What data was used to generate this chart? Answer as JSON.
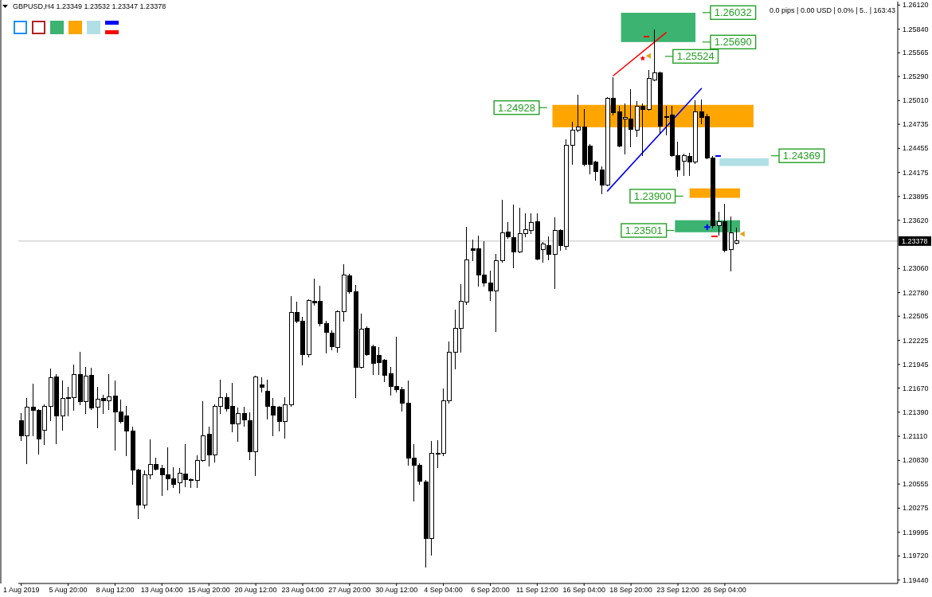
{
  "chart_data": {
    "type": "candlestick",
    "title": "GBPUSD,H4 1.23349 1.23532 1.23347 1.23378",
    "categories": [
      "1 Aug 2019",
      null,
      null,
      null,
      null,
      null,
      null,
      null,
      "5 Aug 20:00",
      null,
      null,
      null,
      null,
      null,
      null,
      null,
      "8 Aug 12:00",
      null,
      null,
      null,
      null,
      null,
      null,
      null,
      "13 Aug 04:00",
      null,
      null,
      null,
      null,
      null,
      null,
      null,
      "15 Aug 20:00",
      null,
      null,
      null,
      null,
      null,
      null,
      null,
      "20 Aug 12:00",
      null,
      null,
      null,
      null,
      null,
      null,
      null,
      "23 Aug 04:00",
      null,
      null,
      null,
      null,
      null,
      null,
      null,
      "27 Aug 20:00",
      null,
      null,
      null,
      null,
      null,
      null,
      null,
      "30 Aug 12:00",
      null,
      null,
      null,
      null,
      null,
      null,
      null,
      "4 Sep 04:00",
      null,
      null,
      null,
      null,
      null,
      null,
      null,
      "6 Sep 20:00",
      null,
      null,
      null,
      null,
      null,
      null,
      null,
      "11 Sep 12:00",
      null,
      null,
      null,
      null,
      null,
      null,
      null,
      "16 Sep 04:00",
      null,
      null,
      null,
      null,
      null,
      null,
      null,
      "18 Sep 20:00",
      null,
      null,
      null,
      null,
      null,
      null,
      null,
      "23 Sep 12:00",
      null,
      null,
      null,
      null,
      null,
      null,
      null,
      "26 Sep 04:00",
      null,
      null,
      null,
      null,
      null,
      null,
      null,
      null,
      null,
      null,
      null,
      null,
      null,
      null,
      null,
      null,
      null,
      null,
      null,
      null,
      null,
      null,
      null,
      null,
      null,
      null,
      null,
      null,
      null
    ],
    "ohlc": [
      [
        1.2129,
        1.2137,
        1.2106,
        1.2112
      ],
      [
        1.2112,
        1.2155,
        1.2079,
        1.2145
      ],
      [
        1.2145,
        1.2172,
        1.2112,
        1.2141
      ],
      [
        1.2141,
        1.2142,
        1.209,
        1.2108
      ],
      [
        1.2118,
        1.2148,
        1.2101,
        1.2146
      ],
      [
        1.2146,
        1.2189,
        1.2129,
        1.2179
      ],
      [
        1.218,
        1.2183,
        1.2102,
        1.2135
      ],
      [
        1.2135,
        1.2175,
        1.2118,
        1.2155
      ],
      [
        1.2155,
        1.2168,
        1.2135,
        1.2156
      ],
      [
        1.2156,
        1.2194,
        1.2141,
        1.2183
      ],
      [
        1.2183,
        1.2209,
        1.2148,
        1.2151
      ],
      [
        1.2151,
        1.2191,
        1.2137,
        1.2181
      ],
      [
        1.2182,
        1.219,
        1.2142,
        1.2144
      ],
      [
        1.2145,
        1.2168,
        1.2121,
        1.2154
      ],
      [
        1.2155,
        1.2159,
        1.2137,
        1.2152
      ],
      [
        1.2152,
        1.2183,
        1.2142,
        1.2157
      ],
      [
        1.2158,
        1.2175,
        1.2095,
        1.2139
      ],
      [
        1.2139,
        1.2153,
        1.2126,
        1.2128
      ],
      [
        1.2135,
        1.2146,
        1.2088,
        1.2117
      ],
      [
        1.2117,
        1.2122,
        1.2055,
        1.2072
      ],
      [
        1.2072,
        1.2073,
        1.2015,
        1.2031
      ],
      [
        1.2031,
        1.2071,
        1.2027,
        1.2066
      ],
      [
        1.2066,
        1.2107,
        1.2062,
        1.2078
      ],
      [
        1.2078,
        1.2086,
        1.2072,
        1.2073
      ],
      [
        1.2074,
        1.2077,
        1.2042,
        1.2066
      ],
      [
        1.2066,
        1.2098,
        1.2049,
        1.2062
      ],
      [
        1.2062,
        1.2075,
        1.2051,
        1.2055
      ],
      [
        1.2057,
        1.2074,
        1.2045,
        1.2068
      ],
      [
        1.2067,
        1.2101,
        1.2052,
        1.2061
      ],
      [
        1.2061,
        1.2062,
        1.2051,
        1.206
      ],
      [
        1.206,
        1.2088,
        1.2051,
        1.2083
      ],
      [
        1.2083,
        1.2151,
        1.2082,
        1.2112
      ],
      [
        1.2113,
        1.2122,
        1.2076,
        1.2089
      ],
      [
        1.2089,
        1.2148,
        1.2081,
        1.2146
      ],
      [
        1.2146,
        1.2176,
        1.2137,
        1.2156
      ],
      [
        1.2156,
        1.2161,
        1.214,
        1.2143
      ],
      [
        1.2146,
        1.2173,
        1.2116,
        1.2125
      ],
      [
        1.2125,
        1.2144,
        1.2105,
        1.2137
      ],
      [
        1.2137,
        1.2145,
        1.2123,
        1.213
      ],
      [
        1.2129,
        1.2138,
        1.2084,
        1.2093
      ],
      [
        1.2093,
        1.2181,
        1.2065,
        1.218
      ],
      [
        1.2171,
        1.2179,
        1.2162,
        1.2168
      ],
      [
        1.2163,
        1.2176,
        1.2131,
        1.2146
      ],
      [
        1.2146,
        1.2155,
        1.2112,
        1.2136
      ],
      [
        1.2145,
        1.2146,
        1.2117,
        1.2128
      ],
      [
        1.2128,
        1.2156,
        1.2109,
        1.2148
      ],
      [
        1.2148,
        1.2273,
        1.2146,
        1.2255
      ],
      [
        1.2255,
        1.2267,
        1.2243,
        1.2245
      ],
      [
        1.2245,
        1.2249,
        1.2194,
        1.2206
      ],
      [
        1.2206,
        1.227,
        1.2203,
        1.2269
      ],
      [
        1.2268,
        1.2294,
        1.2263,
        1.2266
      ],
      [
        1.2268,
        1.2285,
        1.2239,
        1.2242
      ],
      [
        1.2242,
        1.2245,
        1.2208,
        1.2232
      ],
      [
        1.2231,
        1.2234,
        1.2211,
        1.2215
      ],
      [
        1.2214,
        1.2257,
        1.2209,
        1.2256
      ],
      [
        1.2256,
        1.231,
        1.2245,
        1.2298
      ],
      [
        1.2297,
        1.2299,
        1.2277,
        1.2279
      ],
      [
        1.2279,
        1.2286,
        1.2156,
        1.2191
      ],
      [
        1.2191,
        1.2253,
        1.219,
        1.2235
      ],
      [
        1.2236,
        1.2238,
        1.2205,
        1.2206
      ],
      [
        1.2215,
        1.2217,
        1.2183,
        1.2196
      ],
      [
        1.2205,
        1.2214,
        1.2183,
        1.2197
      ],
      [
        1.2199,
        1.22,
        1.2174,
        1.2182
      ],
      [
        1.2184,
        1.2191,
        1.2159,
        1.2169
      ],
      [
        1.2169,
        1.2226,
        1.2162,
        1.2165
      ],
      [
        1.2165,
        1.2168,
        1.214,
        1.2149
      ],
      [
        1.2149,
        1.2175,
        1.2077,
        1.2086
      ],
      [
        1.2086,
        1.2101,
        1.2036,
        1.2077
      ],
      [
        1.2077,
        1.2079,
        1.2055,
        1.2059
      ],
      [
        1.2058,
        1.206,
        1.1959,
        1.1992
      ],
      [
        1.1992,
        1.2105,
        1.1973,
        1.2091
      ],
      [
        1.2091,
        1.2106,
        1.2075,
        1.209
      ],
      [
        1.2091,
        1.2166,
        1.2088,
        1.2152
      ],
      [
        1.2152,
        1.2221,
        1.2149,
        1.2209
      ],
      [
        1.2209,
        1.2258,
        1.2189,
        1.2236
      ],
      [
        1.2236,
        1.2287,
        1.2209,
        1.2268
      ],
      [
        1.2267,
        1.2354,
        1.2264,
        1.2316
      ],
      [
        1.2329,
        1.2339,
        1.2315,
        1.2327
      ],
      [
        1.2329,
        1.2344,
        1.2285,
        1.2298
      ],
      [
        1.2298,
        1.2337,
        1.2285,
        1.2289
      ],
      [
        1.2289,
        1.2303,
        1.2269,
        1.228
      ],
      [
        1.228,
        1.2322,
        1.2233,
        1.2315
      ],
      [
        1.2315,
        1.2385,
        1.2313,
        1.2347
      ],
      [
        1.2348,
        1.2359,
        1.2341,
        1.2343
      ],
      [
        1.2342,
        1.238,
        1.2307,
        1.2325
      ],
      [
        1.2325,
        1.2376,
        1.2324,
        1.2346
      ],
      [
        1.2346,
        1.237,
        1.2343,
        1.2351
      ],
      [
        1.235,
        1.237,
        1.2346,
        1.2359
      ],
      [
        1.236,
        1.237,
        1.2316,
        1.2317
      ],
      [
        1.2328,
        1.2336,
        1.2313,
        1.2334
      ],
      [
        1.2333,
        1.2343,
        1.2316,
        1.2322
      ],
      [
        1.2322,
        1.2365,
        1.2283,
        1.235
      ],
      [
        1.235,
        1.2351,
        1.2327,
        1.2333
      ],
      [
        1.2332,
        1.2456,
        1.2328,
        1.2449
      ],
      [
        1.2449,
        1.2476,
        1.2427,
        1.2467
      ],
      [
        1.2467,
        1.2507,
        1.2465,
        1.247
      ],
      [
        1.247,
        1.2491,
        1.2425,
        1.2427
      ],
      [
        1.2448,
        1.245,
        1.2416,
        1.2427
      ],
      [
        1.243,
        1.2431,
        1.2408,
        1.2419
      ],
      [
        1.242,
        1.2424,
        1.2393,
        1.2403
      ],
      [
        1.2403,
        1.2505,
        1.2402,
        1.2504
      ],
      [
        1.2504,
        1.2528,
        1.2484,
        1.2487
      ],
      [
        1.2488,
        1.2494,
        1.2447,
        1.2448
      ],
      [
        1.248,
        1.2497,
        1.2439,
        1.2481
      ],
      [
        1.248,
        1.2514,
        1.2447,
        1.2468
      ],
      [
        1.2467,
        1.25,
        1.2459,
        1.2494
      ],
      [
        1.2494,
        1.2497,
        1.2437,
        1.2491
      ],
      [
        1.2491,
        1.2536,
        1.249,
        1.2527
      ],
      [
        1.2525,
        1.2583,
        1.2524,
        1.2533
      ],
      [
        1.2533,
        1.2534,
        1.2462,
        1.2471
      ],
      [
        1.2482,
        1.2494,
        1.2461,
        1.2481
      ],
      [
        1.2484,
        1.2494,
        1.2436,
        1.2437
      ],
      [
        1.2437,
        1.2453,
        1.2413,
        1.242
      ],
      [
        1.2431,
        1.2439,
        1.2414,
        1.2437
      ],
      [
        1.2436,
        1.244,
        1.2414,
        1.243
      ],
      [
        1.243,
        1.2501,
        1.2428,
        1.2488
      ],
      [
        1.2488,
        1.2502,
        1.2474,
        1.2481
      ],
      [
        1.2482,
        1.2485,
        1.2433,
        1.2434
      ],
      [
        1.2434,
        1.2436,
        1.2353,
        1.2356
      ],
      [
        1.2356,
        1.2371,
        1.2345,
        1.236
      ],
      [
        1.236,
        1.2381,
        1.2325,
        1.2327
      ],
      [
        1.2328,
        1.2366,
        1.2303,
        1.2347
      ],
      [
        1.23349,
        1.23532,
        1.23347,
        1.23378
      ],
      null,
      null,
      null,
      null,
      null,
      null,
      null,
      null,
      null,
      null,
      null,
      null,
      null,
      null,
      null,
      null,
      null,
      null,
      null,
      null,
      null,
      null,
      null,
      null,
      null,
      null,
      null
    ],
    "series": [
      {
        "type": "line",
        "color": "#ff0000",
        "values": [
          null,
          null,
          null,
          null,
          null,
          null,
          null,
          null,
          null,
          null,
          null,
          null,
          null,
          null,
          null,
          null,
          null,
          null,
          null,
          null,
          null,
          null,
          null,
          null,
          null,
          null,
          null,
          null,
          null,
          null,
          null,
          null,
          null,
          null,
          null,
          null,
          null,
          null,
          null,
          null,
          null,
          null,
          null,
          null,
          null,
          null,
          null,
          null,
          null,
          null,
          null,
          null,
          null,
          null,
          null,
          null,
          null,
          null,
          null,
          null,
          null,
          null,
          null,
          null,
          null,
          null,
          null,
          null,
          null,
          null,
          null,
          null,
          null,
          null,
          null,
          null,
          null,
          null,
          null,
          null,
          null,
          null,
          null,
          null,
          null,
          null,
          null,
          null,
          null,
          null,
          null,
          null,
          null,
          null,
          null,
          null,
          null,
          null,
          null,
          null,
          null,
          1.253,
          null,
          null,
          null,
          null,
          null,
          null,
          null,
          null,
          1.258,
          null,
          null,
          null,
          null,
          null,
          null,
          null,
          null,
          null,
          null,
          null,
          null,
          null,
          null,
          null,
          null,
          null,
          null,
          null,
          null,
          null,
          null,
          null,
          null,
          null,
          null,
          null,
          null,
          null,
          null,
          null,
          null,
          null,
          null,
          null,
          null,
          null,
          null,
          null
        ]
      },
      {
        "type": "line",
        "color": "#0000ff",
        "values": [
          null,
          null,
          null,
          null,
          null,
          null,
          null,
          null,
          null,
          null,
          null,
          null,
          null,
          null,
          null,
          null,
          null,
          null,
          null,
          null,
          null,
          null,
          null,
          null,
          null,
          null,
          null,
          null,
          null,
          null,
          null,
          null,
          null,
          null,
          null,
          null,
          null,
          null,
          null,
          null,
          null,
          null,
          null,
          null,
          null,
          null,
          null,
          null,
          null,
          null,
          null,
          null,
          null,
          null,
          null,
          null,
          null,
          null,
          null,
          null,
          null,
          null,
          null,
          null,
          null,
          null,
          null,
          null,
          null,
          null,
          null,
          null,
          null,
          null,
          null,
          null,
          null,
          null,
          null,
          null,
          null,
          null,
          null,
          null,
          null,
          null,
          null,
          null,
          null,
          null,
          null,
          null,
          null,
          null,
          null,
          null,
          null,
          null,
          null,
          null,
          1.2396,
          null,
          null,
          null,
          null,
          null,
          null,
          null,
          null,
          null,
          null,
          null,
          null,
          null,
          null,
          null,
          1.2515,
          null,
          null,
          null,
          null,
          null,
          null,
          null,
          null,
          null,
          null,
          null,
          null,
          null,
          null,
          null,
          null,
          null,
          null,
          null,
          null,
          null,
          null,
          null,
          null,
          null,
          null,
          null,
          null,
          null,
          null,
          null,
          null,
          null
        ]
      },
      {
        "type": "scatter",
        "color": "#ff0000",
        "marker": "star",
        "values": [
          null,
          null,
          null,
          null,
          null,
          null,
          null,
          null,
          null,
          null,
          null,
          null,
          null,
          null,
          null,
          null,
          null,
          null,
          null,
          null,
          null,
          null,
          null,
          null,
          null,
          null,
          null,
          null,
          null,
          null,
          null,
          null,
          null,
          null,
          null,
          null,
          null,
          null,
          null,
          null,
          null,
          null,
          null,
          null,
          null,
          null,
          null,
          null,
          null,
          null,
          null,
          null,
          null,
          null,
          null,
          null,
          null,
          null,
          null,
          null,
          null,
          null,
          null,
          null,
          null,
          null,
          null,
          null,
          null,
          null,
          null,
          null,
          null,
          null,
          null,
          null,
          null,
          null,
          null,
          null,
          null,
          null,
          null,
          null,
          null,
          null,
          null,
          null,
          null,
          null,
          null,
          null,
          null,
          null,
          null,
          null,
          null,
          null,
          null,
          null,
          null,
          null,
          null,
          null,
          null,
          null,
          1.255,
          null,
          null,
          null,
          null,
          null,
          null,
          null,
          null,
          null,
          null,
          null,
          null,
          null,
          null,
          null,
          null,
          null,
          null,
          null,
          null,
          null,
          null,
          null,
          null,
          null,
          null,
          null,
          null,
          null,
          null,
          null,
          null,
          null,
          null,
          null,
          null,
          null,
          null,
          null,
          null,
          null,
          null,
          null
        ]
      },
      {
        "type": "scatter",
        "color": "#e8a317",
        "marker": "triangle",
        "values": [
          null,
          null,
          null,
          null,
          null,
          null,
          null,
          null,
          null,
          null,
          null,
          null,
          null,
          null,
          null,
          null,
          null,
          null,
          null,
          null,
          null,
          null,
          null,
          null,
          null,
          null,
          null,
          null,
          null,
          null,
          null,
          null,
          null,
          null,
          null,
          null,
          null,
          null,
          null,
          null,
          null,
          null,
          null,
          null,
          null,
          null,
          null,
          null,
          null,
          null,
          null,
          null,
          null,
          null,
          null,
          null,
          null,
          null,
          null,
          null,
          null,
          null,
          null,
          null,
          null,
          null,
          null,
          null,
          null,
          null,
          null,
          null,
          null,
          null,
          null,
          null,
          null,
          null,
          null,
          null,
          null,
          null,
          null,
          null,
          null,
          null,
          null,
          null,
          null,
          null,
          null,
          null,
          null,
          null,
          null,
          null,
          null,
          null,
          null,
          null,
          null,
          null,
          null,
          null,
          null,
          null,
          null,
          1.2553,
          null,
          null,
          null,
          null,
          null,
          null,
          null,
          null,
          null,
          null,
          null,
          null,
          null,
          null,
          null,
          1.2346,
          null,
          null,
          null,
          null,
          null,
          null,
          null,
          null,
          null,
          null,
          null,
          null,
          null,
          null,
          null,
          null,
          null,
          null,
          null,
          null,
          null,
          null,
          null,
          null,
          null,
          null
        ]
      },
      {
        "type": "scatter",
        "color": "#0000ff",
        "marker": "cross",
        "values": [
          null,
          null,
          null,
          null,
          null,
          null,
          null,
          null,
          null,
          null,
          null,
          null,
          null,
          null,
          null,
          null,
          null,
          null,
          null,
          null,
          null,
          null,
          null,
          null,
          null,
          null,
          null,
          null,
          null,
          null,
          null,
          null,
          null,
          null,
          null,
          null,
          null,
          null,
          null,
          null,
          null,
          null,
          null,
          null,
          null,
          null,
          null,
          null,
          null,
          null,
          null,
          null,
          null,
          null,
          null,
          null,
          null,
          null,
          null,
          null,
          null,
          null,
          null,
          null,
          null,
          null,
          null,
          null,
          null,
          null,
          null,
          null,
          null,
          null,
          null,
          null,
          null,
          null,
          null,
          null,
          null,
          null,
          null,
          null,
          null,
          null,
          null,
          null,
          null,
          null,
          null,
          null,
          null,
          null,
          null,
          null,
          null,
          null,
          null,
          null,
          null,
          null,
          null,
          null,
          null,
          null,
          null,
          null,
          null,
          null,
          null,
          null,
          null,
          null,
          null,
          null,
          null,
          1.2354,
          null,
          null,
          null,
          null,
          null,
          null,
          null,
          null,
          null,
          null,
          null,
          null,
          null,
          null,
          null,
          null,
          null,
          null,
          null,
          null,
          null,
          null,
          null,
          null,
          null,
          null,
          null,
          null,
          null,
          null,
          null,
          null
        ]
      }
    ],
    "bands": [
      {
        "axis": "y",
        "from": 1.2569,
        "to": 1.2603,
        "color": "#3cb371"
      },
      {
        "axis": "y",
        "from": 1.247,
        "to": 1.2496,
        "color": "#ffa500"
      },
      {
        "axis": "y",
        "from": 1.2425,
        "to": 1.2434,
        "color": "#b0e0e6"
      },
      {
        "axis": "y",
        "from": 1.2388,
        "to": 1.2399,
        "color": "#ffa500"
      },
      {
        "axis": "y",
        "from": 1.2348,
        "to": 1.2362,
        "color": "#3cb371"
      }
    ],
    "ylim": [
      1.194,
      1.2616
    ],
    "yticks": [
      {
        "value": 1.2612,
        "label": "1.26120"
      },
      {
        "value": 1.2584,
        "label": "1.25840"
      },
      1.25565,
      {
        "value": 1.2529,
        "label": "1.25290"
      },
      {
        "value": 1.2501,
        "label": "1.25010"
      },
      1.24735,
      1.24455,
      1.24175,
      1.23895,
      {
        "value": 1.2362,
        "label": "1.23620"
      },
      {
        "value": 1.2306,
        "label": "1.23060"
      },
      {
        "value": 1.2278,
        "label": "1.22780"
      },
      1.22505,
      1.22225,
      1.21945,
      {
        "value": 1.2167,
        "label": "1.21670"
      },
      {
        "value": 1.2139,
        "label": "1.21390"
      },
      {
        "value": 1.2111,
        "label": "1.21110"
      },
      {
        "value": 1.2083,
        "label": "1.20830"
      },
      1.20555,
      1.20275,
      1.19995,
      {
        "value": 1.1972,
        "label": "1.19720"
      },
      {
        "value": 1.1944,
        "label": "1.19440"
      }
    ],
    "ref_lines": [
      {
        "axis": "y",
        "value": 1.23378,
        "label": "1.23378",
        "color": "#c0c0c0"
      }
    ],
    "annotations": [
      "0.0 pips | 0.00 USD | 0.0% | 5.. | 163:43",
      "1.26032",
      "1.25690",
      "1.25524",
      "1.24928",
      "1.24369",
      "1.23900",
      "1.23501"
    ]
  }
}
